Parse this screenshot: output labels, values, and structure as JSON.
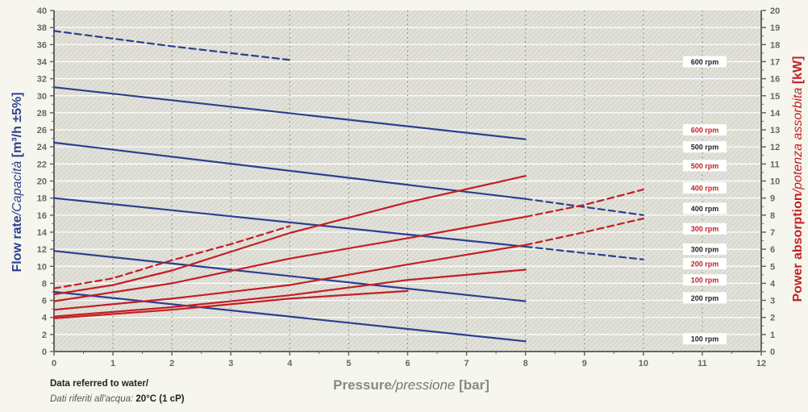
{
  "chart_data": {
    "type": "line",
    "xlabel": {
      "bold": "Pressure",
      "italic": "/pressione",
      "unit": " [bar]"
    },
    "ylabel_left": {
      "bold": "Flow rate",
      "italic": "/Capacità",
      "unit": " [m³/h ±5%]"
    },
    "ylabel_right": {
      "bold": "Power absorption",
      "italic": "/potenza assorbita",
      "unit": " [kW]"
    },
    "xlim": [
      0,
      12
    ],
    "ylim_left": [
      0,
      40
    ],
    "ylim_right": [
      0,
      20
    ],
    "x_ticks": [
      "0",
      "1",
      "2",
      "3",
      "4",
      "5",
      "6",
      "7",
      "8",
      "9",
      "10",
      "11",
      "12"
    ],
    "y_ticks_left": [
      "0",
      "2",
      "4",
      "6",
      "8",
      "10",
      "12",
      "14",
      "16",
      "18",
      "20",
      "22",
      "24",
      "26",
      "28",
      "30",
      "32",
      "34",
      "36",
      "38",
      "40"
    ],
    "y_ticks_right": [
      "0",
      "1",
      "2",
      "3",
      "4",
      "5",
      "6",
      "7",
      "8",
      "9",
      "10",
      "11",
      "12",
      "13",
      "14",
      "15",
      "16",
      "17",
      "18",
      "19",
      "20"
    ],
    "grid": true,
    "colors": {
      "flow": "#2b3f91",
      "power": "#c41e24",
      "axis_text": "#666666",
      "label_flow": "#2b3f91",
      "label_power": "#c41e24"
    },
    "flow_series": [
      {
        "rpm": "100 rpm",
        "axis": "left",
        "solid": [
          [
            0,
            7
          ],
          [
            8,
            1.2
          ]
        ],
        "dashed": []
      },
      {
        "rpm": "200 rpm",
        "axis": "left",
        "solid": [
          [
            0,
            11.8
          ],
          [
            8,
            5.9
          ]
        ],
        "dashed": []
      },
      {
        "rpm": "300 rpm",
        "axis": "left",
        "solid": [
          [
            0,
            18.0
          ],
          [
            8,
            12.3
          ]
        ],
        "dashed": [
          [
            8,
            12.3
          ],
          [
            10,
            10.8
          ]
        ]
      },
      {
        "rpm": "400 rpm",
        "axis": "left",
        "solid": [
          [
            0,
            24.5
          ],
          [
            8,
            17.9
          ]
        ],
        "dashed": [
          [
            8,
            17.9
          ],
          [
            10,
            16.0
          ]
        ]
      },
      {
        "rpm": "500 rpm",
        "axis": "left",
        "solid": [
          [
            0,
            31.0
          ],
          [
            8,
            24.9
          ]
        ],
        "dashed": []
      },
      {
        "rpm": "600 rpm",
        "axis": "left",
        "solid": [],
        "dashed": [
          [
            0,
            37.6
          ],
          [
            2,
            35.8
          ],
          [
            4,
            34.2
          ]
        ]
      }
    ],
    "power_series": [
      {
        "rpm": "100 rpm",
        "axis": "right",
        "solid": [
          [
            0,
            1.95
          ],
          [
            2,
            2.45
          ],
          [
            4,
            3.1
          ],
          [
            6,
            3.55
          ]
        ],
        "dashed": []
      },
      {
        "rpm": "200 rpm",
        "axis": "right",
        "solid": [
          [
            0,
            2.05
          ],
          [
            2,
            2.6
          ],
          [
            4,
            3.3
          ],
          [
            6,
            4.2
          ],
          [
            8,
            4.8
          ]
        ],
        "dashed": []
      },
      {
        "rpm": "300 rpm",
        "axis": "right",
        "solid": [
          [
            0,
            2.45
          ],
          [
            2,
            3.1
          ],
          [
            4,
            3.9
          ],
          [
            6,
            5.1
          ],
          [
            8,
            6.25
          ]
        ],
        "dashed": [
          [
            8,
            6.25
          ],
          [
            9,
            7.0
          ],
          [
            10,
            7.8
          ]
        ]
      },
      {
        "rpm": "400 rpm",
        "axis": "right",
        "solid": [
          [
            0,
            2.95
          ],
          [
            2,
            4.0
          ],
          [
            4,
            5.45
          ],
          [
            6,
            6.65
          ],
          [
            8,
            7.9
          ]
        ],
        "dashed": [
          [
            8,
            7.9
          ],
          [
            9,
            8.6
          ],
          [
            10,
            9.5
          ]
        ]
      },
      {
        "rpm": "500 rpm",
        "axis": "right",
        "solid": [
          [
            0,
            3.35
          ],
          [
            1,
            3.9
          ],
          [
            2,
            4.75
          ],
          [
            4,
            6.95
          ],
          [
            6,
            8.75
          ],
          [
            8,
            10.3
          ]
        ],
        "dashed": []
      },
      {
        "rpm": "600 rpm",
        "axis": "right",
        "solid": [],
        "dashed": [
          [
            0,
            3.7
          ],
          [
            1,
            4.3
          ],
          [
            2,
            5.35
          ],
          [
            3,
            6.3
          ],
          [
            4,
            7.35
          ]
        ]
      }
    ],
    "rpm_labels": [
      {
        "text": "600 rpm",
        "color": "flow",
        "y_left": 34
      },
      {
        "text": "600 rpm",
        "color": "power",
        "y_left": 26
      },
      {
        "text": "500 rpm",
        "color": "flow",
        "y_left": 24
      },
      {
        "text": "500 rpm",
        "color": "power",
        "y_left": 21.8
      },
      {
        "text": "400 rpm",
        "color": "power",
        "y_left": 19.2
      },
      {
        "text": "400 rpm",
        "color": "flow",
        "y_left": 16.8
      },
      {
        "text": "300 rpm",
        "color": "power",
        "y_left": 14.4
      },
      {
        "text": "300 rpm",
        "color": "flow",
        "y_left": 12.0
      },
      {
        "text": "200 rpm",
        "color": "power",
        "y_left": 10.3
      },
      {
        "text": "100 rpm",
        "color": "power",
        "y_left": 8.4
      },
      {
        "text": "200 rpm",
        "color": "flow",
        "y_left": 6.3
      },
      {
        "text": "100 rpm",
        "color": "flow",
        "y_left": 1.5
      }
    ]
  },
  "note": {
    "line1": "Data referred to water/",
    "line2_italic": "Dati riferiti all'acqua: ",
    "line2_bold": "20°C (1 cP)"
  }
}
